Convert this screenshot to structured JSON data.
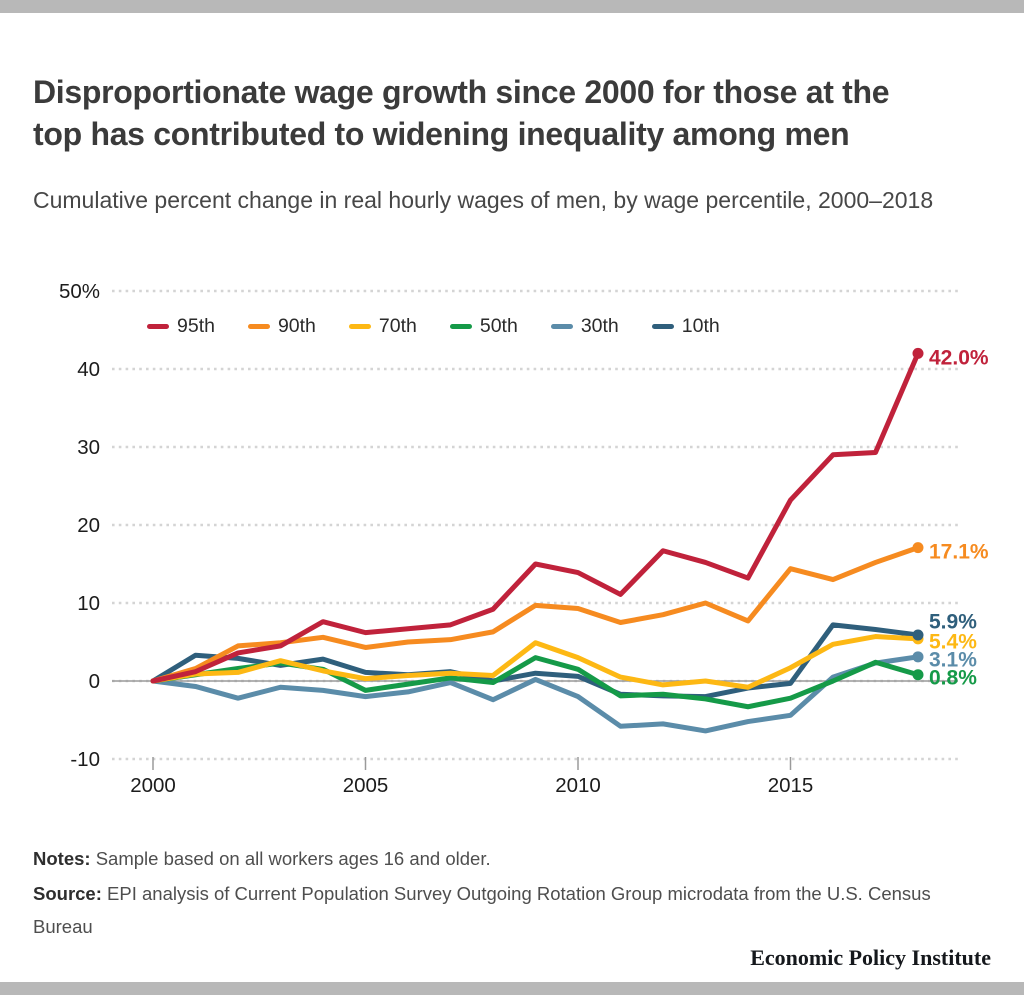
{
  "header": {
    "title": "Disproportionate wage growth since 2000 for those at the top has contributed to widening inequality among men",
    "subtitle": "Cumulative percent change in real hourly wages of men, by wage percentile, 2000–2018"
  },
  "chart_data": {
    "type": "line",
    "title": "Disproportionate wage growth since 2000 for those at the top has contributed to widening inequality among men",
    "subtitle": "Cumulative percent change in real hourly wages of men, by wage percentile, 2000–2018",
    "x": [
      2000,
      2001,
      2002,
      2003,
      2004,
      2005,
      2006,
      2007,
      2008,
      2009,
      2010,
      2011,
      2012,
      2013,
      2014,
      2015,
      2016,
      2017,
      2018
    ],
    "x_ticks": [
      {
        "label": "2000",
        "value": 2000
      },
      {
        "label": "2005",
        "value": 2005
      },
      {
        "label": "2010",
        "value": 2010
      },
      {
        "label": "2015",
        "value": 2015
      }
    ],
    "y_ticks": [
      {
        "label": "50%",
        "value": 50
      },
      {
        "label": "40",
        "value": 40
      },
      {
        "label": "30",
        "value": 30
      },
      {
        "label": "20",
        "value": 20
      },
      {
        "label": "10",
        "value": 10
      },
      {
        "label": "0",
        "value": 0
      },
      {
        "label": "-10",
        "value": -10
      }
    ],
    "ylim": [
      -13,
      52
    ],
    "grid": "horizontal-dotted",
    "legend_position": "top-left-inside",
    "series": [
      {
        "name": "95th",
        "color": "#c0223b",
        "end_label": "42.0%",
        "label_dy": 3.5,
        "values": [
          0,
          1.2,
          3.6,
          4.5,
          7.6,
          6.2,
          6.7,
          7.2,
          9.2,
          15.0,
          13.9,
          11.1,
          16.7,
          15.2,
          13.2,
          23.2,
          29.0,
          29.3,
          42.0
        ]
      },
      {
        "name": "90th",
        "color": "#f68b20",
        "end_label": "17.1%",
        "label_dy": 3.5,
        "values": [
          0,
          1.6,
          4.5,
          4.9,
          5.6,
          4.3,
          5.0,
          5.3,
          6.3,
          9.7,
          9.3,
          7.5,
          8.5,
          10.0,
          7.7,
          14.4,
          13.0,
          15.2,
          17.1
        ]
      },
      {
        "name": "70th",
        "color": "#fdb814",
        "end_label": "5.4%",
        "label_dy": 2,
        "values": [
          0,
          0.9,
          1.1,
          2.6,
          1.3,
          0.3,
          0.7,
          1.0,
          0.7,
          4.9,
          3.0,
          0.5,
          -0.5,
          0.0,
          -0.8,
          1.7,
          4.7,
          5.7,
          5.4
        ]
      },
      {
        "name": "50th",
        "color": "#159a48",
        "end_label": "0.8%",
        "label_dy": 2,
        "values": [
          0,
          0.8,
          1.6,
          2.3,
          1.5,
          -1.2,
          -0.4,
          0.4,
          -0.2,
          3.0,
          1.5,
          -1.9,
          -1.7,
          -2.3,
          -3.3,
          -2.2,
          0.0,
          2.4,
          0.8
        ]
      },
      {
        "name": "30th",
        "color": "#5b8ca9",
        "end_label": "3.1%",
        "label_dy": 2,
        "values": [
          0,
          -0.7,
          -2.2,
          -0.8,
          -1.2,
          -2.0,
          -1.4,
          -0.2,
          -2.4,
          0.2,
          -2.0,
          -5.8,
          -5.5,
          -6.4,
          -5.2,
          -4.4,
          0.5,
          2.3,
          3.1
        ]
      },
      {
        "name": "10th",
        "color": "#2f5f7c",
        "end_label": "5.9%",
        "label_dy": -14,
        "values": [
          0,
          3.3,
          2.9,
          2.0,
          2.8,
          1.1,
          0.8,
          1.2,
          0.0,
          1.0,
          0.6,
          -1.7,
          -1.9,
          -2.0,
          -0.9,
          -0.3,
          7.2,
          6.6,
          5.9
        ]
      }
    ]
  },
  "footer": {
    "notes_label": "Notes:",
    "notes": "Sample based on all workers ages 16 and older.",
    "source_label": "Source:",
    "source": "EPI analysis of Current Population Survey Outgoing Rotation Group microdata from the U.S. Census Bureau",
    "brand": "Economic Policy Institute"
  },
  "colors": {
    "top_bar": "#b8b8b8",
    "bottom_bar": "#b8b8b8",
    "gridline": "#d4d4d4",
    "zero_line": "#9a9a9a",
    "tick_mark": "#9a9a9a",
    "axis_text": "#1c1c1c"
  }
}
